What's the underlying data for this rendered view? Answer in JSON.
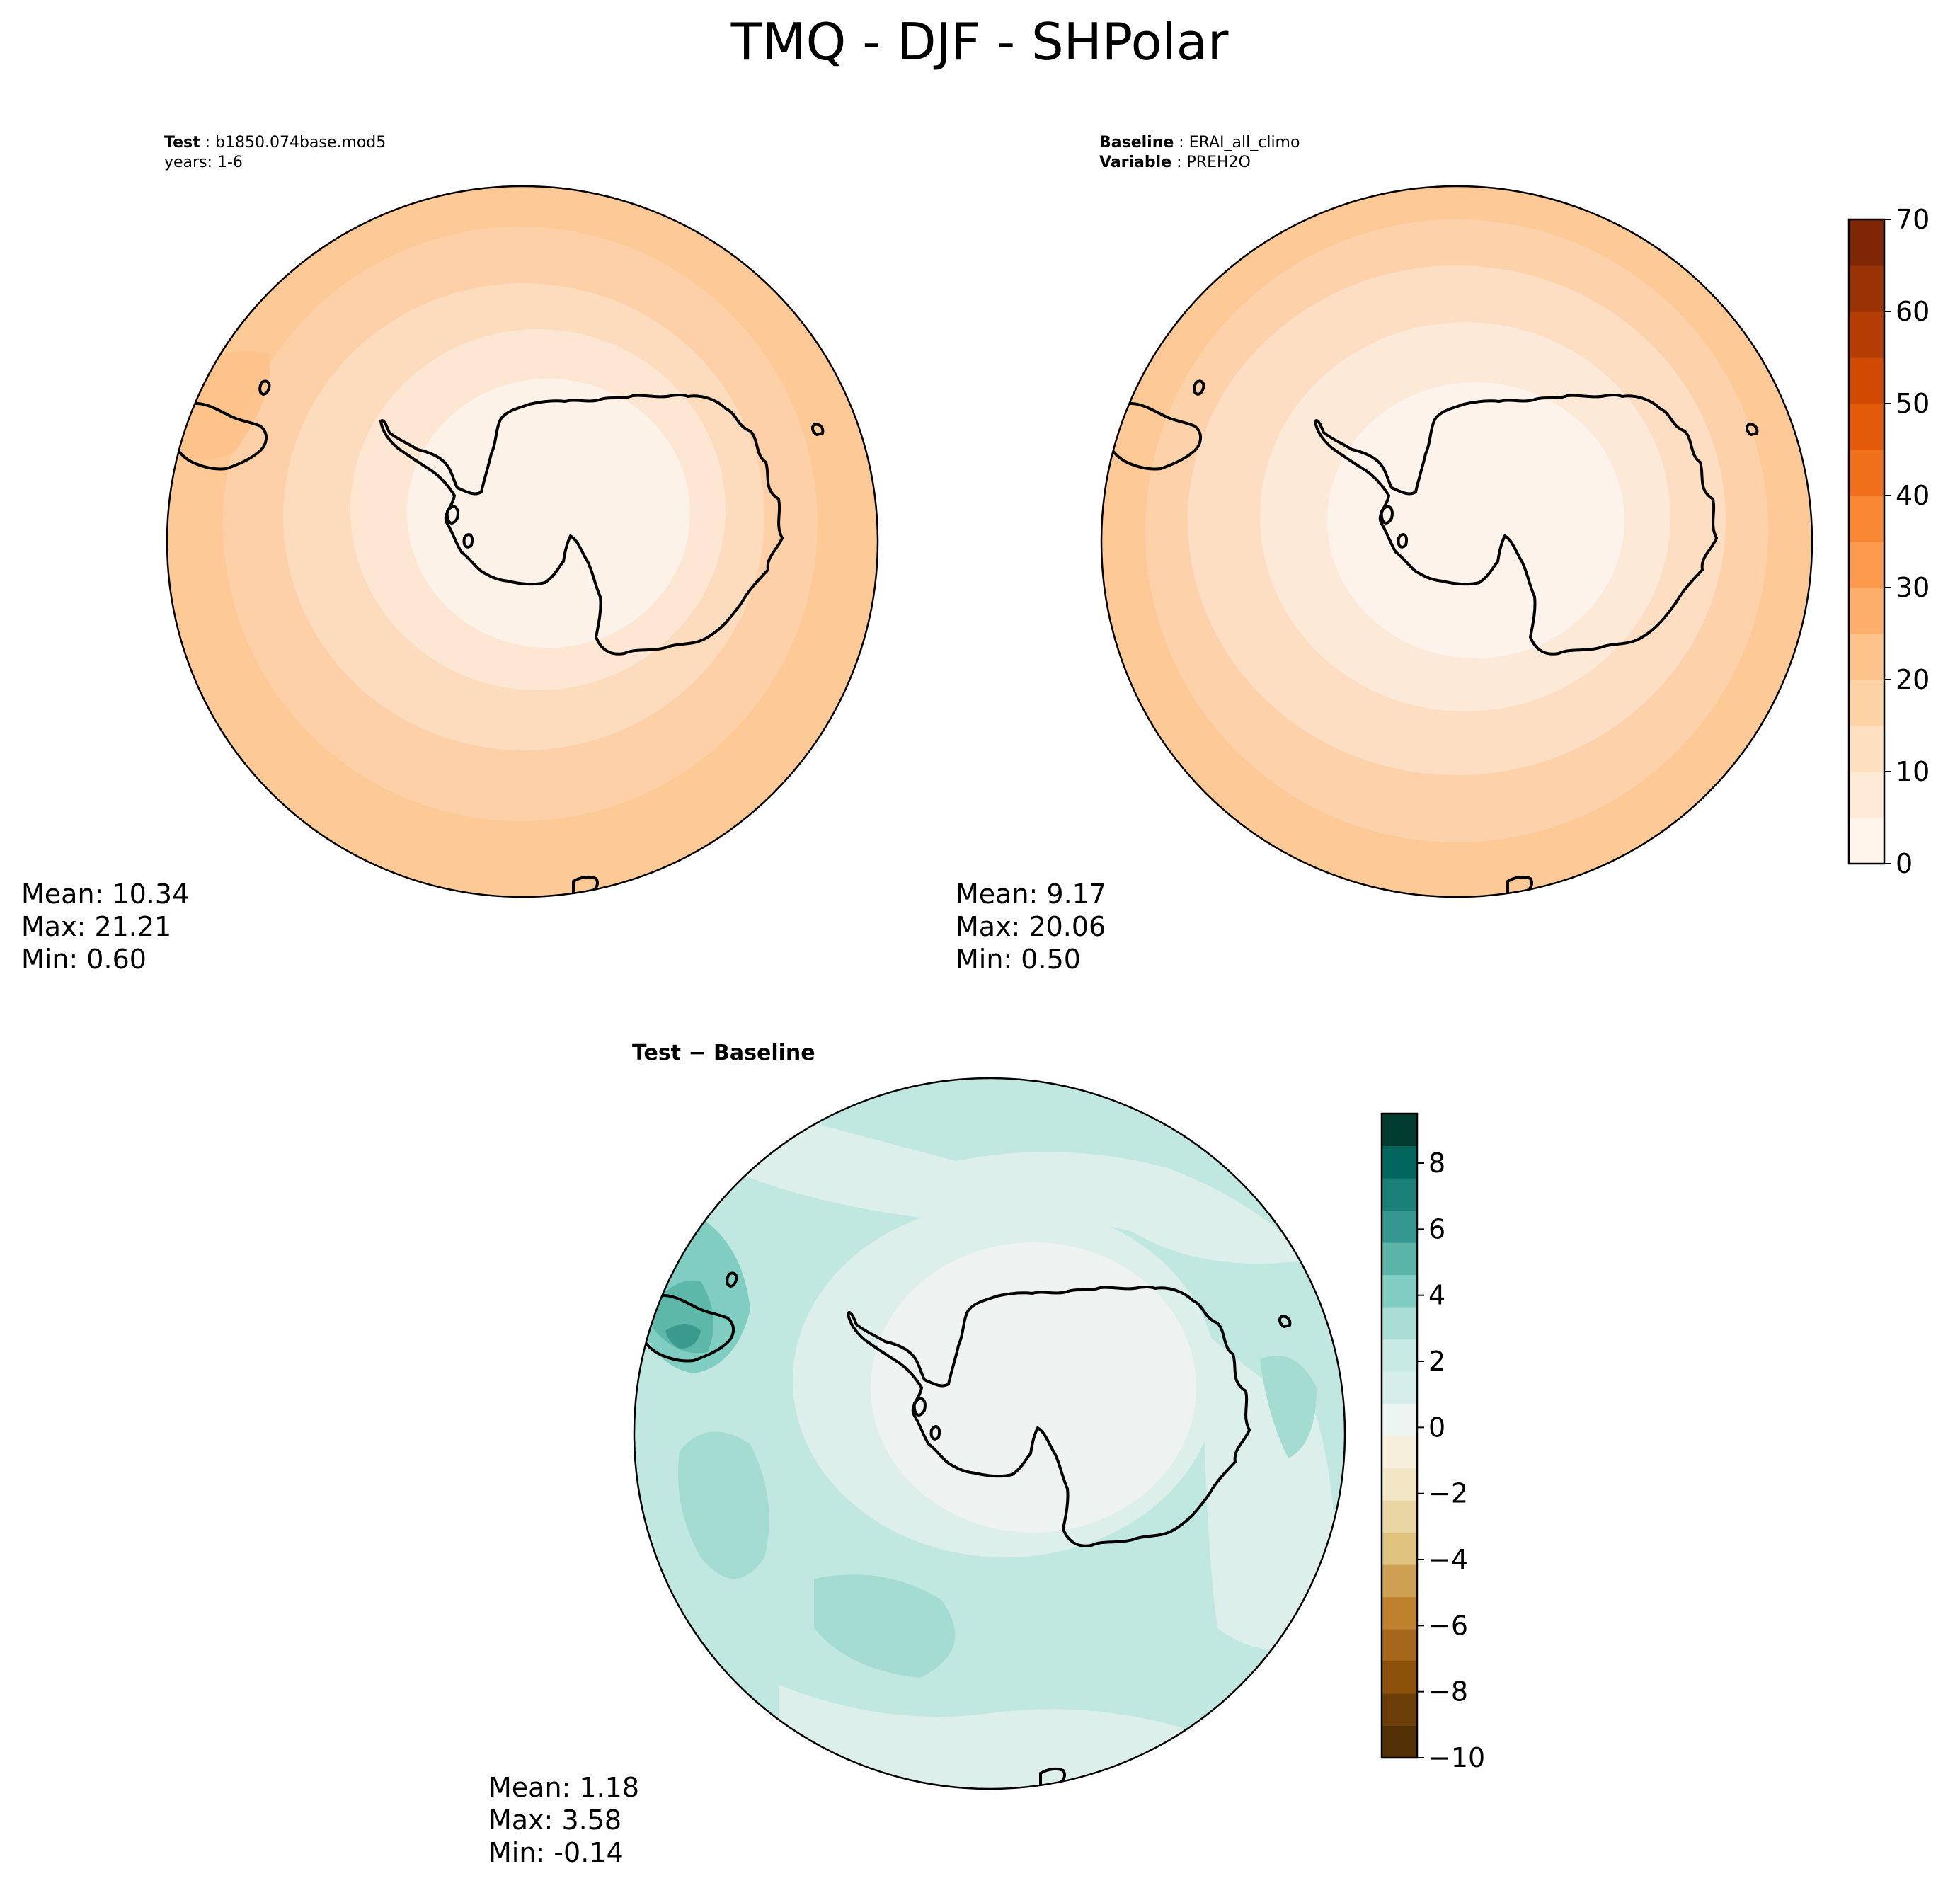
{
  "title": "TMQ - DJF - SHPolar",
  "colors": {
    "land": "#fdf0e6",
    "coast": "#000000",
    "frame": "#000000",
    "test_levels": [
      "#fdf2e7",
      "#fde7d3",
      "#fddcbe",
      "#fdd0a7",
      "#fdbf86"
    ],
    "base_levels": [
      "#fdf3ea",
      "#fde9d7",
      "#fddec3",
      "#fdd2ab",
      "#fcc793"
    ],
    "diff_levels": [
      "#eef2f0",
      "#dcefeb",
      "#c0e7e0",
      "#a4dcd2",
      "#80cdc1",
      "#5eb8aa",
      "#3a9a8e"
    ],
    "orange_cmap": [
      "#fff5eb",
      "#feead6",
      "#fee0c1",
      "#fdd2a5",
      "#fdc38a",
      "#fdae6b",
      "#fd9a4e",
      "#f98632",
      "#f06f1a",
      "#e35a0a",
      "#d04a02",
      "#b53c02",
      "#9b3203",
      "#7f2704"
    ],
    "diff_cmap_low": [
      "#543005",
      "#6b3d08",
      "#8c510a",
      "#a6671d",
      "#bf812d",
      "#cfa054",
      "#dfc27d",
      "#e9d5a1",
      "#f2e6c4",
      "#f6efdc"
    ],
    "diff_cmap_high": [
      "#edf5f3",
      "#d6eeea",
      "#c7eae5",
      "#a9ddd4",
      "#80cdc1",
      "#5ab4a8",
      "#35978f",
      "#1a7f76",
      "#01665e",
      "#003c30"
    ]
  },
  "panels": {
    "test": {
      "label_bold": "Test",
      "label_text": " : b1850.074base.mod5",
      "years": "years: 1-6",
      "stats": {
        "mean": "Mean: 10.34",
        "max": "Max: 21.21",
        "min": "Min:  0.60"
      }
    },
    "baseline": {
      "label_bold": "Baseline",
      "label_text": " : ERAI_all_climo",
      "variable_bold": "Variable",
      "variable_text": " : PREH2O",
      "stats": {
        "mean": "Mean:  9.17",
        "max": "Max: 20.06",
        "min": "Min:  0.50"
      }
    },
    "diff": {
      "title": "Test − Baseline",
      "stats": {
        "mean": "Mean:  1.18",
        "max": "Max:  3.58",
        "min": "Min: -0.14"
      }
    }
  },
  "chart_data": [
    {
      "type": "heatmap",
      "name": "test",
      "projection": "south-polar stereographic",
      "legend": "colorbar shared with baseline",
      "stats": {
        "mean": 10.34,
        "max": 21.21,
        "min": 0.6
      }
    },
    {
      "type": "heatmap",
      "name": "baseline",
      "projection": "south-polar stereographic",
      "colorbar": {
        "range": [
          0,
          70
        ],
        "levels": [
          0,
          5,
          10,
          15,
          20,
          25,
          30,
          35,
          40,
          45,
          50,
          55,
          60,
          65,
          70
        ],
        "ticks": [
          0,
          10,
          20,
          30,
          40,
          50,
          60,
          70
        ],
        "tick_labels": [
          "0",
          "10",
          "20",
          "30",
          "40",
          "50",
          "60",
          "70"
        ],
        "placement": "right"
      },
      "stats": {
        "mean": 9.17,
        "max": 20.06,
        "min": 0.5
      }
    },
    {
      "type": "heatmap",
      "name": "difference",
      "projection": "south-polar stereographic",
      "colorbar": {
        "range": [
          -10,
          9.5
        ],
        "levels_step": 1,
        "ticks": [
          -10,
          -8,
          -6,
          -4,
          -2,
          0,
          2,
          4,
          6,
          8
        ],
        "tick_labels": [
          "−10",
          "−8",
          "−6",
          "−4",
          "−2",
          "0",
          "2",
          "4",
          "6",
          "8"
        ],
        "placement": "right"
      },
      "stats": {
        "mean": 1.18,
        "max": 3.58,
        "min": -0.14
      }
    }
  ]
}
